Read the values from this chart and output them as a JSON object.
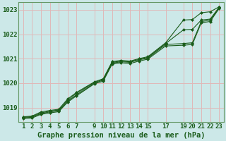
{
  "x_hours": [
    1,
    2,
    3,
    4,
    5,
    6,
    7,
    9,
    10,
    11,
    12,
    13,
    14,
    15,
    17,
    19,
    20,
    21,
    22,
    23
  ],
  "line1_y": [
    1018.62,
    1018.65,
    1018.82,
    1018.88,
    1018.93,
    1019.35,
    1019.62,
    1020.05,
    1020.18,
    1020.88,
    1020.93,
    1020.9,
    1021.0,
    1021.08,
    1021.65,
    1022.58,
    1022.6,
    1022.88,
    1022.92,
    1023.12
  ],
  "line2_y": [
    1018.6,
    1018.63,
    1018.78,
    1018.85,
    1018.9,
    1019.3,
    1019.58,
    1020.03,
    1020.15,
    1020.85,
    1020.9,
    1020.87,
    1020.97,
    1021.05,
    1021.62,
    1022.18,
    1022.2,
    1022.58,
    1022.62,
    1023.1
  ],
  "line3_y": [
    1018.58,
    1018.6,
    1018.75,
    1018.82,
    1018.87,
    1019.25,
    1019.52,
    1020.0,
    1020.12,
    1020.82,
    1020.87,
    1020.85,
    1020.95,
    1021.02,
    1021.58,
    1021.62,
    1021.65,
    1022.52,
    1022.57,
    1023.08
  ],
  "line4_y": [
    1018.55,
    1018.57,
    1018.72,
    1018.78,
    1018.83,
    1019.22,
    1019.48,
    1019.97,
    1020.08,
    1020.78,
    1020.83,
    1020.8,
    1020.9,
    1020.98,
    1021.52,
    1021.55,
    1021.58,
    1022.47,
    1022.52,
    1023.05
  ],
  "bg_color": "#cce8e8",
  "line_color": "#1a5c1a",
  "grid_color": "#e0b8b8",
  "xlabel": "Graphe pression niveau de la mer (hPa)",
  "ylim": [
    1018.4,
    1023.3
  ],
  "yticks": [
    1019,
    1020,
    1021,
    1022,
    1023
  ],
  "xticks": [
    1,
    2,
    3,
    4,
    5,
    6,
    7,
    9,
    10,
    11,
    12,
    13,
    14,
    15,
    17,
    19,
    20,
    21,
    22,
    23
  ],
  "tick_fontsize": 6.5,
  "xlabel_fontsize": 7.5
}
